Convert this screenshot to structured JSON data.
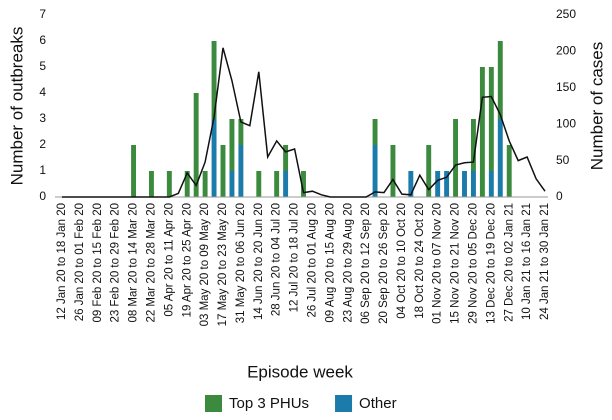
{
  "chart_data": {
    "type": "bar_line",
    "x_label": "Episode week",
    "y_label": "Number of outbreaks",
    "y2_label": "Number of cases",
    "categories": [
      "12 Jan 20 to 18 Jan 20",
      null,
      "26 Jan 20 to 01 Feb 20",
      null,
      "09 Feb 20 to 15 Feb 20",
      null,
      "23 Feb 20 to 29 Feb 20",
      null,
      "08 Mar 20 to 14 Mar 20",
      null,
      "22 Mar 20 to 28 Mar 20",
      null,
      "05 Apr 20 to 11 Apr 20",
      null,
      "19 Apr 20 to 25 Apr 20",
      null,
      "03 May 20 to 09 May 20",
      null,
      "17 May 20 to 23 May 20",
      null,
      "31 May 20 to 06 Jun 20",
      null,
      "14 Jun 20 to 20 Jun 20",
      null,
      "28 Jun 20 to 04 Jul 20",
      null,
      "12 Jul 20 to 18 Jul 20",
      null,
      "26 Jul 20 to 01 Aug 20",
      null,
      "09 Aug 20 to 15 Aug 20",
      null,
      "23 Aug 20 to 29 Aug 20",
      null,
      "06 Sep 20 to 12 Sep 20",
      null,
      "20 Sep 20 to 26 Sep 20",
      null,
      "04 Oct 20 to 10 Oct 20",
      null,
      "18 Oct 20 to 24 Oct 20",
      null,
      "01 Nov 20 to 07 Nov 20",
      null,
      "15 Nov 20 to 21 Nov 20",
      null,
      "29 Nov 20 to 05 Dec 20",
      null,
      "13 Dec 20 to 19 Dec 20",
      null,
      "27 Dec 20 to 02 Jan 21",
      null,
      "10 Jan 21 to 16 Jan 21",
      null,
      "24 Jan 21 to 30 Jan 21"
    ],
    "series": [
      {
        "name": "Top 3 PHUs",
        "color": "#3b8a3e",
        "values": [
          0,
          0,
          0,
          0,
          0,
          0,
          0,
          0,
          2,
          0,
          1,
          0,
          1,
          0,
          1,
          4,
          1,
          3,
          2,
          2,
          1,
          0,
          1,
          0,
          1,
          1,
          0,
          1,
          0,
          0,
          0,
          0,
          0,
          0,
          0,
          1,
          0,
          2,
          0,
          0,
          0,
          2,
          0,
          0,
          3,
          0,
          2,
          5,
          4,
          3,
          2,
          0,
          0,
          0,
          0
        ]
      },
      {
        "name": "Other",
        "color": "#1b7bab",
        "values": [
          0,
          0,
          0,
          0,
          0,
          0,
          0,
          0,
          0,
          0,
          0,
          0,
          0,
          0,
          0,
          0,
          0,
          3,
          0,
          1,
          2,
          0,
          0,
          0,
          0,
          1,
          0,
          0,
          0,
          0,
          0,
          0,
          0,
          0,
          0,
          2,
          0,
          0,
          0,
          1,
          0,
          0,
          1,
          1,
          0,
          1,
          1,
          0,
          1,
          3,
          0,
          0,
          0,
          0,
          0
        ]
      },
      {
        "name": "Cases",
        "color": "#111111",
        "axis": "y2",
        "values": [
          0,
          0,
          0,
          0,
          0,
          0,
          0,
          0,
          0,
          0,
          0,
          0,
          0,
          5,
          33,
          16,
          48,
          110,
          205,
          160,
          103,
          98,
          172,
          55,
          77,
          62,
          66,
          6,
          8,
          3,
          0,
          0,
          0,
          0,
          0,
          7,
          6,
          24,
          4,
          3,
          30,
          10,
          23,
          27,
          44,
          47,
          48,
          137,
          138,
          113,
          77,
          50,
          55,
          25,
          8
        ]
      }
    ],
    "ylim": [
      0,
      7
    ],
    "yticks": [
      0,
      1,
      2,
      3,
      4,
      5,
      6,
      7
    ],
    "y2lim": [
      0,
      250
    ],
    "y2ticks": [
      0,
      50,
      100,
      150,
      200,
      250
    ]
  }
}
